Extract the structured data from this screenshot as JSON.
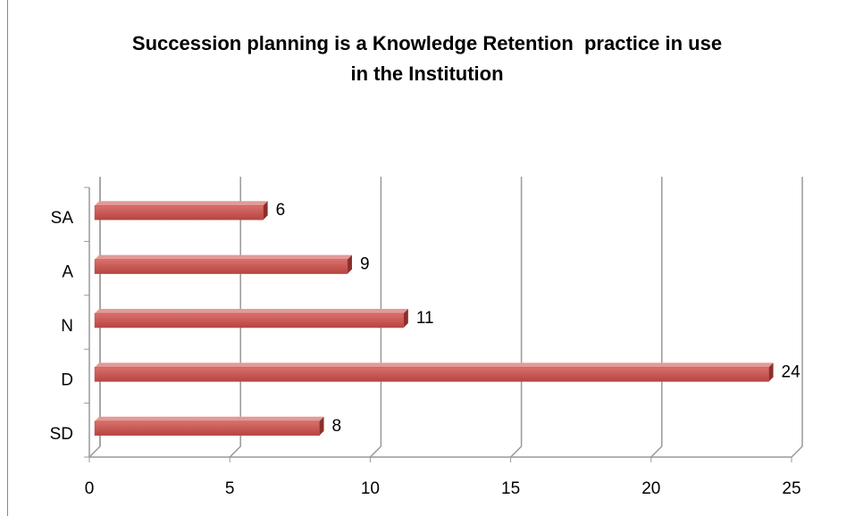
{
  "chart_data": {
    "type": "bar",
    "orientation": "horizontal",
    "title": "Succession planning is a Knowledge Retention  practice in use in the Institution",
    "categories": [
      "SA",
      "A",
      "N",
      "D",
      "SD"
    ],
    "values": [
      6,
      9,
      11,
      24,
      8
    ],
    "color": "#c0504d",
    "xlim": [
      0,
      25
    ],
    "xticks": [
      0,
      5,
      10,
      15,
      20,
      25
    ],
    "grid": true
  }
}
